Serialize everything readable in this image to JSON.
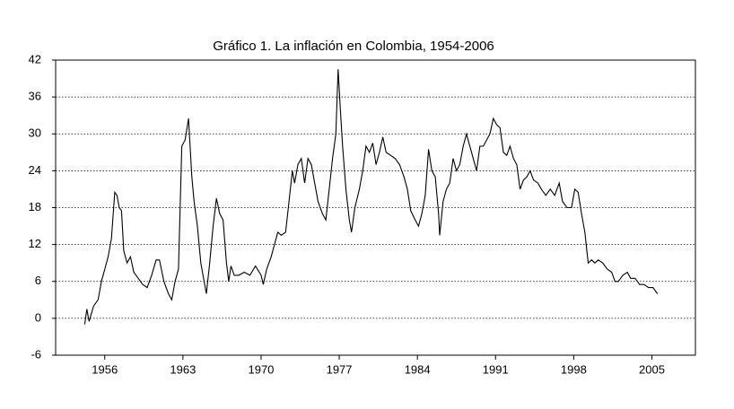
{
  "chart_data": {
    "type": "line",
    "title": "Gráfico 1. La inflación en Colombia, 1954-2006",
    "x": [
      1954.2,
      1954.4,
      1954.6,
      1955.0,
      1955.4,
      1955.7,
      1956.0,
      1956.3,
      1956.6,
      1956.9,
      1957.1,
      1957.3,
      1957.5,
      1957.7,
      1958.0,
      1958.3,
      1958.6,
      1959.0,
      1959.4,
      1959.8,
      1960.2,
      1960.6,
      1960.9,
      1961.3,
      1961.7,
      1962.0,
      1962.3,
      1962.6,
      1962.9,
      1963.2,
      1963.5,
      1963.8,
      1964.0,
      1964.3,
      1964.6,
      1964.9,
      1965.1,
      1965.4,
      1965.7,
      1966.0,
      1966.3,
      1966.6,
      1966.9,
      1967.1,
      1967.3,
      1967.6,
      1968.0,
      1968.5,
      1969.0,
      1969.5,
      1970.0,
      1970.2,
      1970.5,
      1970.9,
      1971.2,
      1971.5,
      1971.8,
      1972.2,
      1972.5,
      1972.8,
      1973.0,
      1973.3,
      1973.6,
      1973.9,
      1974.2,
      1974.5,
      1974.8,
      1975.1,
      1975.5,
      1975.8,
      1976.1,
      1976.4,
      1976.7,
      1976.9,
      1977.1,
      1977.3,
      1977.6,
      1977.9,
      1978.1,
      1978.4,
      1978.8,
      1979.1,
      1979.4,
      1979.7,
      1980.0,
      1980.3,
      1980.6,
      1980.9,
      1981.2,
      1981.6,
      1982.0,
      1982.4,
      1982.8,
      1983.1,
      1983.4,
      1983.8,
      1984.1,
      1984.4,
      1984.7,
      1985.0,
      1985.3,
      1985.6,
      1985.9,
      1986.0,
      1986.3,
      1986.6,
      1986.9,
      1987.2,
      1987.5,
      1987.8,
      1988.1,
      1988.4,
      1988.7,
      1989.0,
      1989.3,
      1989.6,
      1989.9,
      1990.2,
      1990.5,
      1990.8,
      1991.1,
      1991.4,
      1991.7,
      1992.0,
      1992.3,
      1992.6,
      1992.9,
      1993.2,
      1993.5,
      1993.8,
      1994.1,
      1994.4,
      1994.8,
      1995.1,
      1995.5,
      1995.9,
      1996.3,
      1996.7,
      1997.0,
      1997.4,
      1997.8,
      1998.1,
      1998.4,
      1998.7,
      1999.0,
      1999.3,
      1999.6,
      1999.9,
      2000.2,
      2000.6,
      2001.0,
      2001.4,
      2001.7,
      2002.0,
      2002.4,
      2002.8,
      2003.1,
      2003.5,
      2003.9,
      2004.3,
      2004.7,
      2005.1,
      2005.5
    ],
    "series": [
      {
        "color": "#000000",
        "values": [
          -1,
          1.5,
          -0.5,
          2,
          3,
          6,
          8,
          10,
          13,
          20.5,
          20,
          18,
          17.5,
          11,
          9,
          10,
          7.5,
          6.5,
          5.5,
          5,
          7,
          9.5,
          9.5,
          6,
          4,
          3,
          6,
          8,
          28,
          29,
          32.5,
          23,
          19,
          15,
          9,
          6,
          4,
          9,
          15,
          19.5,
          17,
          16,
          9,
          6,
          8.5,
          7,
          7,
          7.5,
          7,
          8.5,
          7,
          5.5,
          8,
          10,
          12,
          14,
          13.5,
          14,
          19,
          24,
          22,
          25,
          26,
          22,
          26,
          25,
          22,
          19,
          17,
          16,
          21,
          26,
          30,
          40.5,
          34,
          28,
          21,
          16,
          14,
          18,
          21,
          24,
          28,
          27,
          28.5,
          25,
          27,
          29.5,
          27,
          26.5,
          26,
          25,
          23,
          21,
          17.5,
          16,
          15,
          17,
          20,
          27.5,
          24,
          23,
          17,
          13.5,
          19,
          21,
          22,
          26,
          24,
          25,
          28,
          30,
          28,
          26,
          24,
          28,
          28,
          29,
          30,
          32.5,
          31.5,
          31,
          27,
          26.5,
          28,
          26,
          25,
          21,
          22.5,
          23,
          24,
          22.5,
          22,
          21,
          20,
          21,
          20,
          22,
          19,
          18,
          18,
          21,
          20.5,
          17,
          14,
          9,
          9.5,
          9,
          9.5,
          9,
          8,
          7.5,
          6,
          6,
          7,
          7.5,
          6.5,
          6.5,
          5.5,
          5.5,
          5,
          5,
          4
        ]
      }
    ],
    "xlim": [
      1951.6,
      2008.9
    ],
    "xticks": [
      1956,
      1963,
      1970,
      1977,
      1984,
      1991,
      1998,
      2005
    ],
    "ylim": [
      -6,
      42
    ],
    "yticks": [
      -6,
      0,
      6,
      12,
      18,
      24,
      30,
      36,
      42
    ],
    "grid": true
  }
}
